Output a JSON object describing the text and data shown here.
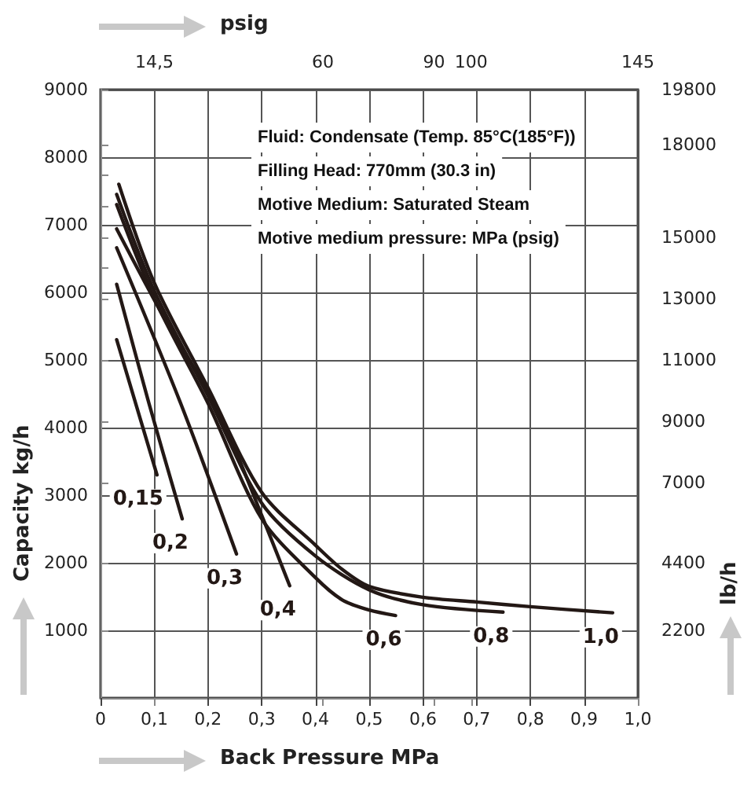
{
  "chart_data": {
    "type": "line",
    "xlabel": "Back Pressure MPa",
    "ylabel": "Capacity kg/h",
    "y2label": "lb/h",
    "x2label": "psig",
    "annotations": [
      "Fluid: Condensate (Temp. 85°C(185°F))",
      "Filling Head: 770mm (30.3 in)",
      "Motive Medium: Saturated Steam",
      "Motive medium pressure: MPa (psig)"
    ],
    "xlim": [
      0,
      1
    ],
    "xticks": [
      {
        "value": 0,
        "label": "0"
      },
      {
        "value": 0.1,
        "label": "0,1"
      },
      {
        "value": 0.2,
        "label": "0,2"
      },
      {
        "value": 0.3,
        "label": "0,3"
      },
      {
        "value": 0.4,
        "label": "0,4"
      },
      {
        "value": 0.5,
        "label": "0,5"
      },
      {
        "value": 0.6,
        "label": "0,6"
      },
      {
        "value": 0.7,
        "label": "0,7"
      },
      {
        "value": 0.8,
        "label": "0,8"
      },
      {
        "value": 0.9,
        "label": "0,9"
      },
      {
        "value": 1,
        "label": "1,0"
      }
    ],
    "x2lim": [
      0,
      145
    ],
    "x2ticks": [
      {
        "value": 14.5,
        "label": "14,5"
      },
      60,
      90,
      100,
      145
    ],
    "ylim": [
      0,
      9000
    ],
    "yticks": [
      1000,
      2000,
      3000,
      4000,
      5000,
      6000,
      7000,
      8000,
      9000
    ],
    "y2lim": [
      0,
      19800
    ],
    "y2ticks": [
      2200,
      4400,
      7000,
      9000,
      11000,
      13000,
      {
        "value": 14000,
        "label": null
      },
      15000,
      {
        "value": 16000,
        "label": null
      },
      {
        "value": 17000,
        "label": null
      },
      18000,
      19800
    ],
    "grid": true,
    "legend": false,
    "marker": "none",
    "line_style": "solid",
    "series": [
      {
        "name": "0,15",
        "color": "#231815",
        "x": [
          0.03,
          0.105
        ],
        "values": [
          5300,
          3300
        ]
      },
      {
        "name": "0,2",
        "color": "#231815",
        "x": [
          0.03,
          0.09,
          0.152
        ],
        "values": [
          6120,
          4360,
          2650
        ]
      },
      {
        "name": "0,3",
        "color": "#231815",
        "x": [
          0.03,
          0.149,
          0.253
        ],
        "values": [
          6660,
          4360,
          2130
        ]
      },
      {
        "name": "0,4",
        "color": "#231815",
        "x": [
          0.03,
          0.12,
          0.217,
          0.3,
          0.352
        ],
        "values": [
          6940,
          5600,
          4280,
          2700,
          1660
        ]
      },
      {
        "name": "0,6",
        "color": "#231815",
        "x": [
          0.03,
          0.1,
          0.2,
          0.3,
          0.4,
          0.45,
          0.5,
          0.549
        ],
        "values": [
          7300,
          5910,
          4360,
          2650,
          1780,
          1450,
          1300,
          1220
        ]
      },
      {
        "name": "0,8",
        "color": "#231815",
        "x": [
          0.03,
          0.1,
          0.2,
          0.3,
          0.4,
          0.5,
          0.6,
          0.749
        ],
        "values": [
          7450,
          6020,
          4470,
          2880,
          2100,
          1600,
          1380,
          1270
        ]
      },
      {
        "name": "1,0",
        "color": "#231815",
        "x": [
          0.034,
          0.1,
          0.2,
          0.3,
          0.4,
          0.45,
          0.5,
          0.6,
          0.7,
          0.8,
          0.953
        ],
        "values": [
          7600,
          6140,
          4590,
          3040,
          2260,
          1900,
          1650,
          1490,
          1420,
          1350,
          1260
        ]
      }
    ]
  }
}
